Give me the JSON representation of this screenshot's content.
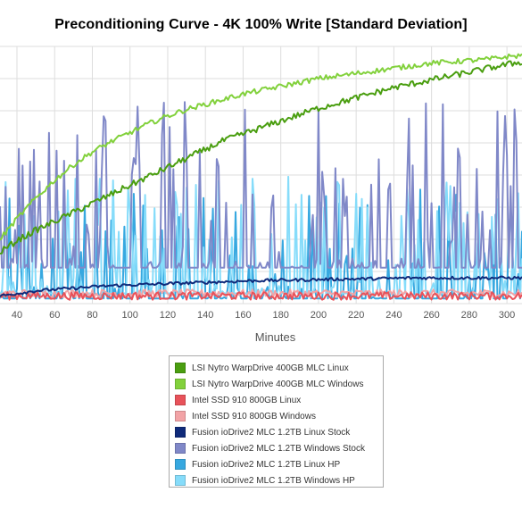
{
  "chart_data": {
    "type": "line",
    "title": "Preconditioning Curve - 4K 100% Write [Standard Deviation]",
    "xlabel": "Minutes",
    "ylabel": "",
    "xlim": [
      31,
      308
    ],
    "ylim": [
      0,
      1
    ],
    "x_ticks": [
      40,
      60,
      80,
      100,
      120,
      140,
      160,
      180,
      200,
      220,
      240,
      260,
      280,
      300
    ],
    "x_tick_labels": [
      "40",
      "60",
      "80",
      "100",
      "120",
      "140",
      "160",
      "180",
      "200",
      "220",
      "240",
      "260",
      "280",
      "300"
    ],
    "grid": true,
    "legend_position": "bottom",
    "series": [
      {
        "name": "LSI Nytro WarpDrive 400GB MLC Linux",
        "color": "#4a9e10",
        "x": [
          31,
          40,
          50,
          60,
          70,
          80,
          90,
          100,
          110,
          120,
          130,
          140,
          150,
          160,
          170,
          180,
          190,
          200,
          210,
          220,
          230,
          240,
          250,
          260,
          270,
          280,
          290,
          300,
          308
        ],
        "values": [
          0.2,
          0.245,
          0.285,
          0.32,
          0.355,
          0.39,
          0.425,
          0.46,
          0.495,
          0.53,
          0.565,
          0.6,
          0.635,
          0.66,
          0.685,
          0.71,
          0.735,
          0.76,
          0.78,
          0.8,
          0.82,
          0.84,
          0.855,
          0.87,
          0.885,
          0.9,
          0.915,
          0.93,
          0.94
        ],
        "noise": 0.012
      },
      {
        "name": "LSI Nytro WarpDrive 400GB MLC Windows",
        "color": "#82d13c",
        "x": [
          31,
          40,
          50,
          60,
          70,
          80,
          90,
          100,
          110,
          120,
          130,
          140,
          150,
          160,
          170,
          180,
          190,
          200,
          210,
          220,
          230,
          240,
          250,
          260,
          270,
          280,
          290,
          300,
          308
        ],
        "values": [
          0.25,
          0.33,
          0.41,
          0.48,
          0.54,
          0.59,
          0.63,
          0.665,
          0.7,
          0.73,
          0.755,
          0.775,
          0.795,
          0.815,
          0.83,
          0.845,
          0.86,
          0.875,
          0.885,
          0.895,
          0.905,
          0.915,
          0.925,
          0.935,
          0.94,
          0.945,
          0.95,
          0.96,
          0.965
        ],
        "noise": 0.01
      },
      {
        "name": "Intel SSD 910 800GB Linux",
        "color": "#e8525a",
        "x": [
          31,
          60,
          90,
          120,
          150,
          180,
          210,
          240,
          270,
          308
        ],
        "values": [
          0.03,
          0.03,
          0.03,
          0.03,
          0.03,
          0.03,
          0.03,
          0.03,
          0.03,
          0.03
        ],
        "noise": 0.015
      },
      {
        "name": "Intel SSD 910 800GB Windows",
        "color": "#f2a3a6",
        "x": [
          31,
          60,
          90,
          120,
          150,
          180,
          210,
          240,
          270,
          308
        ],
        "values": [
          0.04,
          0.04,
          0.04,
          0.04,
          0.04,
          0.04,
          0.04,
          0.04,
          0.04,
          0.04
        ],
        "noise": 0.015
      },
      {
        "name": "Fusion ioDrive2 MLC 1.2TB Linux Stock",
        "color": "#0f2a7a",
        "x": [
          31,
          50,
          70,
          90,
          110,
          130,
          150,
          170,
          190,
          210,
          230,
          250,
          270,
          290,
          308
        ],
        "values": [
          0.03,
          0.05,
          0.06,
          0.07,
          0.075,
          0.08,
          0.085,
          0.09,
          0.092,
          0.095,
          0.097,
          0.1,
          0.1,
          0.1,
          0.1
        ],
        "noise": 0.006
      },
      {
        "name": "Fusion ioDrive2 MLC 1.2TB Windows Stock",
        "color": "#8088c8",
        "x": [
          31,
          308
        ],
        "values": [
          0.14,
          0.14
        ],
        "noise": 0.0,
        "spike_min": 0.2,
        "spike_max": 0.8
      },
      {
        "name": "Fusion ioDrive2 MLC 1.2TB Linux HP",
        "color": "#37a8e0",
        "x": [
          31,
          308
        ],
        "values": [
          0.02,
          0.02
        ],
        "noise": 0.0,
        "spike_min": 0.1,
        "spike_max": 0.45
      },
      {
        "name": "Fusion ioDrive2 MLC 1.2TB Windows HP",
        "color": "#86dcfa",
        "x": [
          31,
          308
        ],
        "values": [
          0.04,
          0.04
        ],
        "noise": 0.0,
        "spike_min": 0.15,
        "spike_max": 0.5
      }
    ]
  }
}
